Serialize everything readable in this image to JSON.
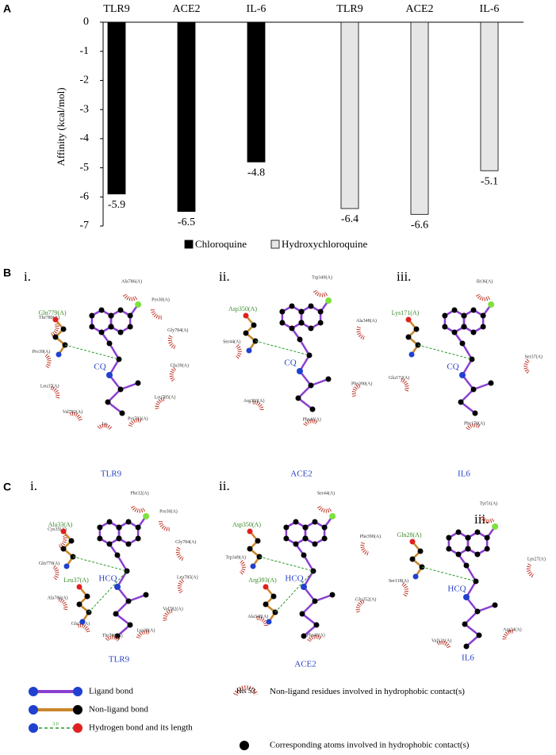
{
  "chart_data": {
    "type": "bar",
    "panel": "A",
    "ylabel": "Affinity  (kcal/mol)",
    "categories": [
      "TLR9",
      "ACE2",
      "IL-6",
      "TLR9",
      "ACE2",
      "IL-6"
    ],
    "series": [
      {
        "name": "Chloroquine",
        "color": "#000000",
        "values": [
          -5.9,
          -6.5,
          -4.8,
          null,
          null,
          null
        ]
      },
      {
        "name": "Hydroxychloroquine",
        "color": "#e6e6e6",
        "values": [
          null,
          null,
          null,
          -6.4,
          -6.6,
          -5.1
        ]
      }
    ],
    "ylim": [
      -7,
      0
    ],
    "yticks": [
      0,
      -1,
      -2,
      -3,
      -4,
      -5,
      -6,
      -7
    ]
  },
  "panels": [
    {
      "letter": "B",
      "diagrams": [
        {
          "numeral": "i.",
          "ligand": "CQ",
          "target": "TLR9",
          "hydrophobic": [
            "Ala786(A)",
            "Pro30(A)",
            "Gly784(A)",
            "Glu39(A)",
            "Leu785(A)",
            "Pro783(A)",
            "Ly",
            "Val782(A)",
            "Leu37(A)",
            "Pro39(A)",
            "Thr780(A)"
          ],
          "hbond_residues": [
            "Gln779(A)"
          ]
        },
        {
          "numeral": "ii.",
          "ligand": "CQ",
          "target": "ACE2",
          "hydrophobic": [
            "Trp349(A)",
            "Ala348(A)",
            "Phe390(A)",
            "Phe40(A)",
            "Arg393(A)",
            "Ser44(A)"
          ],
          "hbond_residues": [
            "Asp350(A)"
          ]
        },
        {
          "numeral": "iii.",
          "ligand": "CQ",
          "target": "IL6",
          "hydrophobic": [
            "Ile36(A)",
            "Ser37(A)",
            "Phe170(A)",
            "Glu172(A)"
          ],
          "hbond_residues": [
            "Lys171(A)"
          ]
        }
      ]
    },
    {
      "letter": "C",
      "diagrams": [
        {
          "numeral": "i.",
          "ligand": "HCQ",
          "target": "TLR9",
          "hydrophobic": [
            "Phe32(A)",
            "Pro30(A)",
            "Gly784(A)",
            "Leu785(A)",
            "Val782(A)",
            "Lys38(A)",
            "Thr780(A)",
            "Glu36(A)",
            "Ala786(A)",
            "Gln779(A)",
            "Cys35(A)"
          ],
          "hbond_residues": [
            "Ala33(A)",
            "Leu37(A)"
          ]
        },
        {
          "numeral": "ii.",
          "ligand": "HCQ",
          "target": "ACE2",
          "hydrophobic": [
            "Ser44(A)",
            "Phe390(A)",
            "Gly352(A)",
            "Phe40(A)",
            "Ala348(A)",
            "Trp349(A)"
          ],
          "hbond_residues": [
            "Asp350(A)",
            "Arg393(A)"
          ]
        },
        {
          "numeral": "iii.",
          "ligand": "HCQ",
          "target": "IL6",
          "hydrophobic": [
            "Tyr51(A)",
            "Lys27(A)",
            "Arg24(A)",
            "Val121(A)",
            "Ser118(A)"
          ],
          "hbond_residues": [
            "Gln28(A)"
          ]
        }
      ]
    }
  ],
  "legend": {
    "ligand_bond": "Ligand bond",
    "non_ligand_bond": "Non-ligand bond",
    "hydrogen_bond": "Hydrogen bond and its length",
    "bond_length": "3.0",
    "residue_example": "His 53",
    "residue_text": "Non-ligand residues involved in hydrophobic contact(s)",
    "atom_text": "Corresponding atoms involved in hydrophobic contact(s)"
  }
}
